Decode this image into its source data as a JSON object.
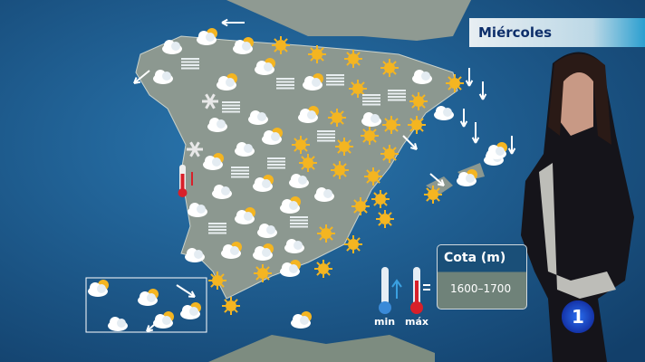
{
  "day_label": "Miércoles",
  "snow_level": {
    "title": "Cota (m)",
    "value": "1600–1700"
  },
  "temperature_legend": {
    "min_label": "min",
    "max_label": "máx"
  },
  "channel_logo": "1",
  "colors": {
    "sea": "#1d5a8c",
    "land": "#8a9690",
    "sun": "#f4b521",
    "cloud": "#ffffff",
    "min": "#3a8ad8",
    "max": "#d8202a"
  },
  "icons": [
    "sun-icon",
    "cloud-icon",
    "sun-cloud-icon",
    "fog-icon",
    "wind-arrow-icon",
    "snow-icon",
    "thermometer-icon"
  ]
}
